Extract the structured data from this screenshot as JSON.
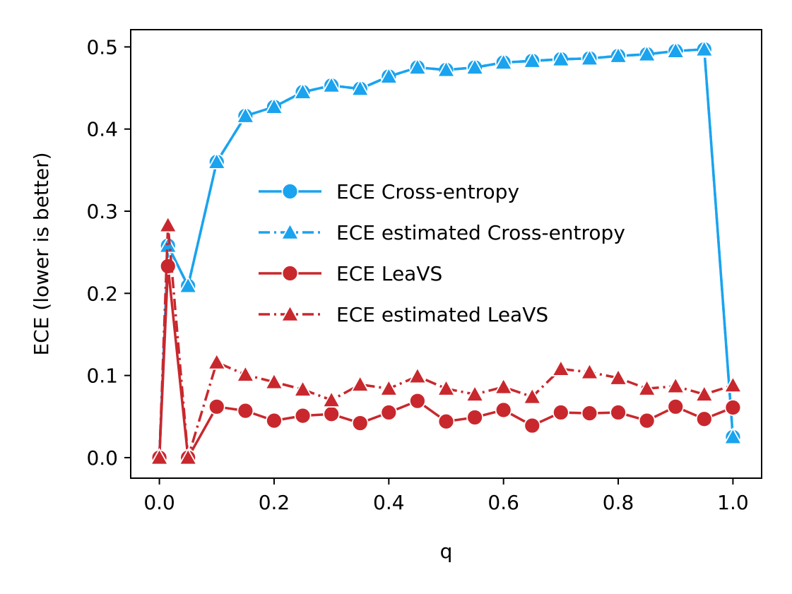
{
  "chart_data": {
    "type": "line",
    "title": "",
    "xlabel": "q",
    "ylabel": "ECE (lower is better)",
    "xlim": [
      -0.05,
      1.05
    ],
    "ylim": [
      -0.025,
      0.521
    ],
    "xticks": [
      "0.0",
      "0.2",
      "0.4",
      "0.6",
      "0.8",
      "1.0"
    ],
    "yticks": [
      "0.0",
      "0.1",
      "0.2",
      "0.3",
      "0.4",
      "0.5"
    ],
    "x": [
      0.0,
      0.015,
      0.05,
      0.1,
      0.15,
      0.2,
      0.25,
      0.3,
      0.35,
      0.4,
      0.45,
      0.5,
      0.55,
      0.6,
      0.65,
      0.7,
      0.75,
      0.8,
      0.85,
      0.9,
      0.95,
      1.0
    ],
    "legend_position": "center-right",
    "series": [
      {
        "name": "ECE Cross-entropy",
        "color": "#1aa3ef",
        "marker": "circle",
        "dash": "solid",
        "values": [
          0.0,
          0.258,
          0.209,
          0.36,
          0.416,
          0.427,
          0.445,
          0.453,
          0.449,
          0.464,
          0.475,
          0.472,
          0.475,
          0.481,
          0.483,
          0.485,
          0.486,
          0.489,
          0.491,
          0.495,
          0.497,
          0.025
        ]
      },
      {
        "name": "ECE estimated Cross-entropy",
        "color": "#1aa3ef",
        "marker": "triangle",
        "dash": "dashdot",
        "values": [
          0.0,
          0.258,
          0.209,
          0.36,
          0.416,
          0.427,
          0.445,
          0.453,
          0.449,
          0.464,
          0.475,
          0.472,
          0.475,
          0.481,
          0.483,
          0.485,
          0.486,
          0.489,
          0.491,
          0.495,
          0.497,
          0.025
        ]
      },
      {
        "name": "ECE LeaVS",
        "color": "#c8282d",
        "marker": "circle",
        "dash": "solid",
        "values": [
          0.0,
          0.233,
          0.0,
          0.062,
          0.057,
          0.045,
          0.051,
          0.053,
          0.042,
          0.055,
          0.069,
          0.044,
          0.049,
          0.058,
          0.039,
          0.055,
          0.054,
          0.055,
          0.045,
          0.062,
          0.047,
          0.061
        ]
      },
      {
        "name": "ECE estimated LeaVS",
        "color": "#c8282d",
        "marker": "triangle",
        "dash": "dashdot",
        "values": [
          0.0,
          0.283,
          0.0,
          0.116,
          0.101,
          0.092,
          0.083,
          0.07,
          0.089,
          0.084,
          0.099,
          0.084,
          0.077,
          0.086,
          0.074,
          0.108,
          0.104,
          0.097,
          0.084,
          0.087,
          0.077,
          0.088
        ]
      }
    ]
  }
}
